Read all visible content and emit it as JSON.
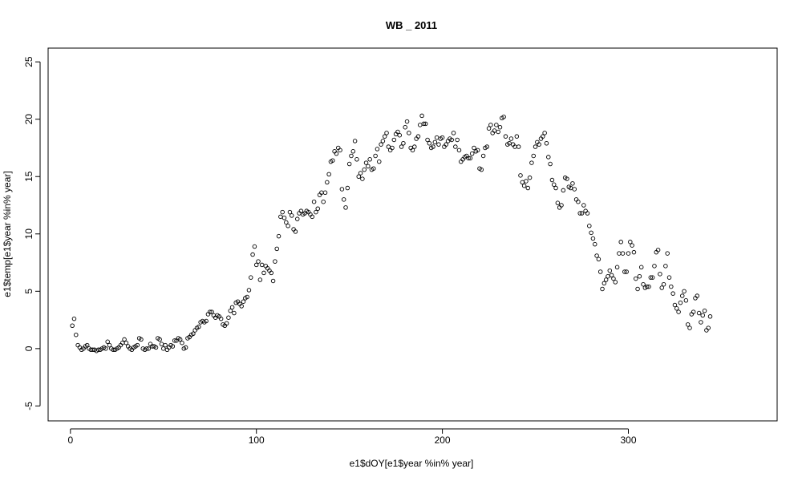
{
  "chart_data": {
    "type": "scatter",
    "title": "WB _ 2011",
    "xlabel": "e1$dOY[e1$year %in% year]",
    "ylabel": "e1$temp[e1$year %in% year]",
    "xlim": [
      -12,
      380
    ],
    "ylim": [
      -6.3,
      26.2
    ],
    "xticks": [
      0,
      100,
      200,
      300
    ],
    "yticks": [
      -5,
      0,
      5,
      10,
      15,
      20,
      25
    ],
    "grid": false,
    "legend": "none",
    "marker": "open-circle",
    "color": "#000000",
    "points": [
      [
        1,
        2.0
      ],
      [
        2,
        2.6
      ],
      [
        3,
        1.2
      ],
      [
        4,
        0.3
      ],
      [
        5,
        0.1
      ],
      [
        6,
        -0.1
      ],
      [
        7,
        0.0
      ],
      [
        8,
        0.2
      ],
      [
        9,
        0.3
      ],
      [
        10,
        0.0
      ],
      [
        11,
        -0.1
      ],
      [
        12,
        -0.1
      ],
      [
        13,
        -0.1
      ],
      [
        14,
        -0.2
      ],
      [
        15,
        -0.1
      ],
      [
        16,
        -0.1
      ],
      [
        17,
        0.0
      ],
      [
        18,
        0.1
      ],
      [
        19,
        0.0
      ],
      [
        20,
        0.6
      ],
      [
        21,
        0.3
      ],
      [
        22,
        0.0
      ],
      [
        23,
        -0.1
      ],
      [
        24,
        -0.1
      ],
      [
        25,
        0.0
      ],
      [
        26,
        0.1
      ],
      [
        27,
        0.3
      ],
      [
        28,
        0.5
      ],
      [
        29,
        0.8
      ],
      [
        30,
        0.5
      ],
      [
        31,
        0.2
      ],
      [
        32,
        0.0
      ],
      [
        33,
        -0.1
      ],
      [
        34,
        0.1
      ],
      [
        35,
        0.2
      ],
      [
        36,
        0.3
      ],
      [
        37,
        0.9
      ],
      [
        38,
        0.8
      ],
      [
        39,
        0.0
      ],
      [
        40,
        -0.1
      ],
      [
        41,
        0.0
      ],
      [
        42,
        0.0
      ],
      [
        43,
        0.4
      ],
      [
        44,
        0.2
      ],
      [
        45,
        0.2
      ],
      [
        46,
        0.1
      ],
      [
        47,
        0.9
      ],
      [
        48,
        0.8
      ],
      [
        49,
        0.4
      ],
      [
        50,
        0.0
      ],
      [
        51,
        0.3
      ],
      [
        52,
        -0.1
      ],
      [
        53,
        0.1
      ],
      [
        54,
        0.3
      ],
      [
        55,
        0.2
      ],
      [
        56,
        0.7
      ],
      [
        57,
        0.7
      ],
      [
        58,
        0.9
      ],
      [
        59,
        0.8
      ],
      [
        60,
        0.5
      ],
      [
        61,
        0.0
      ],
      [
        62,
        0.1
      ],
      [
        63,
        0.9
      ],
      [
        64,
        1.0
      ],
      [
        65,
        1.2
      ],
      [
        66,
        1.3
      ],
      [
        67,
        1.6
      ],
      [
        68,
        1.8
      ],
      [
        69,
        1.9
      ],
      [
        70,
        2.3
      ],
      [
        71,
        2.4
      ],
      [
        72,
        2.3
      ],
      [
        73,
        2.4
      ],
      [
        74,
        3.0
      ],
      [
        75,
        3.2
      ],
      [
        76,
        3.2
      ],
      [
        77,
        2.9
      ],
      [
        78,
        2.7
      ],
      [
        79,
        2.9
      ],
      [
        80,
        2.8
      ],
      [
        81,
        2.6
      ],
      [
        82,
        2.1
      ],
      [
        83,
        2.0
      ],
      [
        84,
        2.2
      ],
      [
        85,
        2.7
      ],
      [
        86,
        3.3
      ],
      [
        87,
        3.6
      ],
      [
        88,
        3.1
      ],
      [
        89,
        4.0
      ],
      [
        90,
        4.1
      ],
      [
        91,
        3.9
      ],
      [
        92,
        3.7
      ],
      [
        93,
        4.1
      ],
      [
        94,
        4.4
      ],
      [
        95,
        4.5
      ],
      [
        96,
        5.1
      ],
      [
        97,
        6.2
      ],
      [
        98,
        8.2
      ],
      [
        99,
        8.9
      ],
      [
        100,
        7.3
      ],
      [
        101,
        7.6
      ],
      [
        102,
        6.0
      ],
      [
        103,
        7.3
      ],
      [
        104,
        6.6
      ],
      [
        105,
        7.2
      ],
      [
        106,
        7.0
      ],
      [
        107,
        6.8
      ],
      [
        108,
        6.6
      ],
      [
        109,
        5.9
      ],
      [
        110,
        7.6
      ],
      [
        111,
        8.7
      ],
      [
        112,
        9.8
      ],
      [
        113,
        11.5
      ],
      [
        114,
        11.9
      ],
      [
        115,
        11.4
      ],
      [
        116,
        11.0
      ],
      [
        117,
        10.7
      ],
      [
        118,
        11.9
      ],
      [
        119,
        11.6
      ],
      [
        120,
        10.4
      ],
      [
        121,
        10.2
      ],
      [
        122,
        11.3
      ],
      [
        123,
        11.8
      ],
      [
        124,
        12.0
      ],
      [
        125,
        11.7
      ],
      [
        126,
        11.8
      ],
      [
        127,
        12.0
      ],
      [
        128,
        11.9
      ],
      [
        129,
        11.7
      ],
      [
        130,
        11.5
      ],
      [
        131,
        12.8
      ],
      [
        132,
        11.9
      ],
      [
        133,
        12.2
      ],
      [
        134,
        13.4
      ],
      [
        135,
        13.6
      ],
      [
        136,
        12.8
      ],
      [
        137,
        13.6
      ],
      [
        138,
        14.5
      ],
      [
        139,
        15.2
      ],
      [
        140,
        16.3
      ],
      [
        141,
        16.4
      ],
      [
        142,
        17.2
      ],
      [
        143,
        17.0
      ],
      [
        144,
        17.5
      ],
      [
        145,
        17.3
      ],
      [
        146,
        13.9
      ],
      [
        147,
        13.0
      ],
      [
        148,
        12.3
      ],
      [
        149,
        14.0
      ],
      [
        150,
        16.1
      ],
      [
        151,
        16.8
      ],
      [
        152,
        17.2
      ],
      [
        153,
        18.1
      ],
      [
        154,
        16.5
      ],
      [
        155,
        15.0
      ],
      [
        156,
        15.3
      ],
      [
        157,
        14.8
      ],
      [
        158,
        15.6
      ],
      [
        159,
        16.2
      ],
      [
        160,
        15.9
      ],
      [
        161,
        16.5
      ],
      [
        162,
        15.6
      ],
      [
        163,
        15.7
      ],
      [
        164,
        16.8
      ],
      [
        165,
        17.4
      ],
      [
        166,
        16.3
      ],
      [
        167,
        17.8
      ],
      [
        168,
        18.1
      ],
      [
        169,
        18.5
      ],
      [
        170,
        18.8
      ],
      [
        171,
        17.6
      ],
      [
        172,
        17.3
      ],
      [
        173,
        17.5
      ],
      [
        174,
        18.2
      ],
      [
        175,
        18.7
      ],
      [
        176,
        18.9
      ],
      [
        177,
        18.6
      ],
      [
        178,
        17.6
      ],
      [
        179,
        17.9
      ],
      [
        180,
        19.3
      ],
      [
        181,
        19.8
      ],
      [
        182,
        18.8
      ],
      [
        183,
        17.5
      ],
      [
        184,
        17.3
      ],
      [
        185,
        17.6
      ],
      [
        186,
        18.3
      ],
      [
        187,
        18.5
      ],
      [
        188,
        19.5
      ],
      [
        189,
        20.3
      ],
      [
        190,
        19.6
      ],
      [
        191,
        19.6
      ],
      [
        192,
        18.2
      ],
      [
        193,
        17.9
      ],
      [
        194,
        17.5
      ],
      [
        195,
        17.6
      ],
      [
        196,
        18.0
      ],
      [
        197,
        18.4
      ],
      [
        198,
        17.8
      ],
      [
        199,
        18.3
      ],
      [
        200,
        18.4
      ],
      [
        201,
        17.6
      ],
      [
        202,
        17.8
      ],
      [
        203,
        18.1
      ],
      [
        204,
        18.3
      ],
      [
        205,
        18.2
      ],
      [
        206,
        18.8
      ],
      [
        207,
        17.6
      ],
      [
        208,
        18.2
      ],
      [
        209,
        17.3
      ],
      [
        210,
        16.3
      ],
      [
        211,
        16.5
      ],
      [
        212,
        16.7
      ],
      [
        213,
        16.8
      ],
      [
        214,
        16.6
      ],
      [
        215,
        16.6
      ],
      [
        216,
        17.0
      ],
      [
        217,
        17.5
      ],
      [
        218,
        17.2
      ],
      [
        219,
        17.3
      ],
      [
        220,
        15.7
      ],
      [
        221,
        15.6
      ],
      [
        222,
        16.8
      ],
      [
        223,
        17.5
      ],
      [
        224,
        17.6
      ],
      [
        225,
        19.2
      ],
      [
        226,
        19.5
      ],
      [
        227,
        18.8
      ],
      [
        228,
        19.0
      ],
      [
        229,
        19.5
      ],
      [
        230,
        18.9
      ],
      [
        231,
        19.3
      ],
      [
        232,
        20.1
      ],
      [
        233,
        20.2
      ],
      [
        234,
        18.5
      ],
      [
        235,
        17.8
      ],
      [
        236,
        17.9
      ],
      [
        237,
        18.3
      ],
      [
        238,
        17.8
      ],
      [
        239,
        17.6
      ],
      [
        240,
        18.5
      ],
      [
        241,
        17.6
      ],
      [
        242,
        15.1
      ],
      [
        243,
        14.5
      ],
      [
        244,
        14.2
      ],
      [
        245,
        14.6
      ],
      [
        246,
        14.0
      ],
      [
        247,
        14.9
      ],
      [
        248,
        16.2
      ],
      [
        249,
        16.8
      ],
      [
        250,
        17.6
      ],
      [
        251,
        18.0
      ],
      [
        252,
        17.8
      ],
      [
        253,
        18.3
      ],
      [
        254,
        18.5
      ],
      [
        255,
        18.8
      ],
      [
        256,
        17.9
      ],
      [
        257,
        16.7
      ],
      [
        258,
        16.1
      ],
      [
        259,
        14.7
      ],
      [
        260,
        14.3
      ],
      [
        261,
        14.0
      ],
      [
        262,
        12.7
      ],
      [
        263,
        12.3
      ],
      [
        264,
        12.5
      ],
      [
        265,
        13.8
      ],
      [
        266,
        14.9
      ],
      [
        267,
        14.8
      ],
      [
        268,
        14.1
      ],
      [
        269,
        14.0
      ],
      [
        270,
        14.4
      ],
      [
        271,
        13.9
      ],
      [
        272,
        13.0
      ],
      [
        273,
        12.8
      ],
      [
        274,
        11.8
      ],
      [
        275,
        11.8
      ],
      [
        276,
        12.5
      ],
      [
        277,
        12.0
      ],
      [
        278,
        11.8
      ],
      [
        279,
        10.7
      ],
      [
        280,
        10.1
      ],
      [
        281,
        9.6
      ],
      [
        282,
        9.1
      ],
      [
        283,
        8.1
      ],
      [
        284,
        7.8
      ],
      [
        285,
        6.7
      ],
      [
        286,
        5.2
      ],
      [
        287,
        5.7
      ],
      [
        288,
        6.0
      ],
      [
        289,
        6.3
      ],
      [
        290,
        6.8
      ],
      [
        291,
        6.4
      ],
      [
        292,
        6.1
      ],
      [
        293,
        5.8
      ],
      [
        294,
        7.1
      ],
      [
        295,
        8.3
      ],
      [
        296,
        9.3
      ],
      [
        297,
        8.3
      ],
      [
        298,
        6.7
      ],
      [
        299,
        6.7
      ],
      [
        300,
        8.3
      ],
      [
        301,
        9.3
      ],
      [
        302,
        9.0
      ],
      [
        303,
        8.4
      ],
      [
        304,
        6.1
      ],
      [
        305,
        5.2
      ],
      [
        306,
        6.3
      ],
      [
        307,
        7.1
      ],
      [
        308,
        5.6
      ],
      [
        309,
        5.3
      ],
      [
        310,
        5.4
      ],
      [
        311,
        5.4
      ],
      [
        312,
        6.2
      ],
      [
        313,
        6.2
      ],
      [
        314,
        7.2
      ],
      [
        315,
        8.4
      ],
      [
        316,
        8.6
      ],
      [
        317,
        6.5
      ],
      [
        318,
        5.3
      ],
      [
        319,
        5.6
      ],
      [
        320,
        7.2
      ],
      [
        321,
        8.3
      ],
      [
        322,
        6.2
      ],
      [
        323,
        5.4
      ],
      [
        324,
        4.8
      ],
      [
        325,
        3.8
      ],
      [
        326,
        3.5
      ],
      [
        327,
        3.2
      ],
      [
        328,
        4.0
      ],
      [
        329,
        4.6
      ],
      [
        330,
        5.0
      ],
      [
        331,
        4.2
      ],
      [
        332,
        2.1
      ],
      [
        333,
        1.8
      ],
      [
        334,
        3.0
      ],
      [
        335,
        3.2
      ],
      [
        336,
        4.4
      ],
      [
        337,
        4.6
      ],
      [
        338,
        3.1
      ],
      [
        339,
        2.3
      ],
      [
        340,
        2.9
      ],
      [
        341,
        3.3
      ],
      [
        342,
        1.6
      ],
      [
        343,
        1.8
      ],
      [
        344,
        2.8
      ]
    ]
  }
}
